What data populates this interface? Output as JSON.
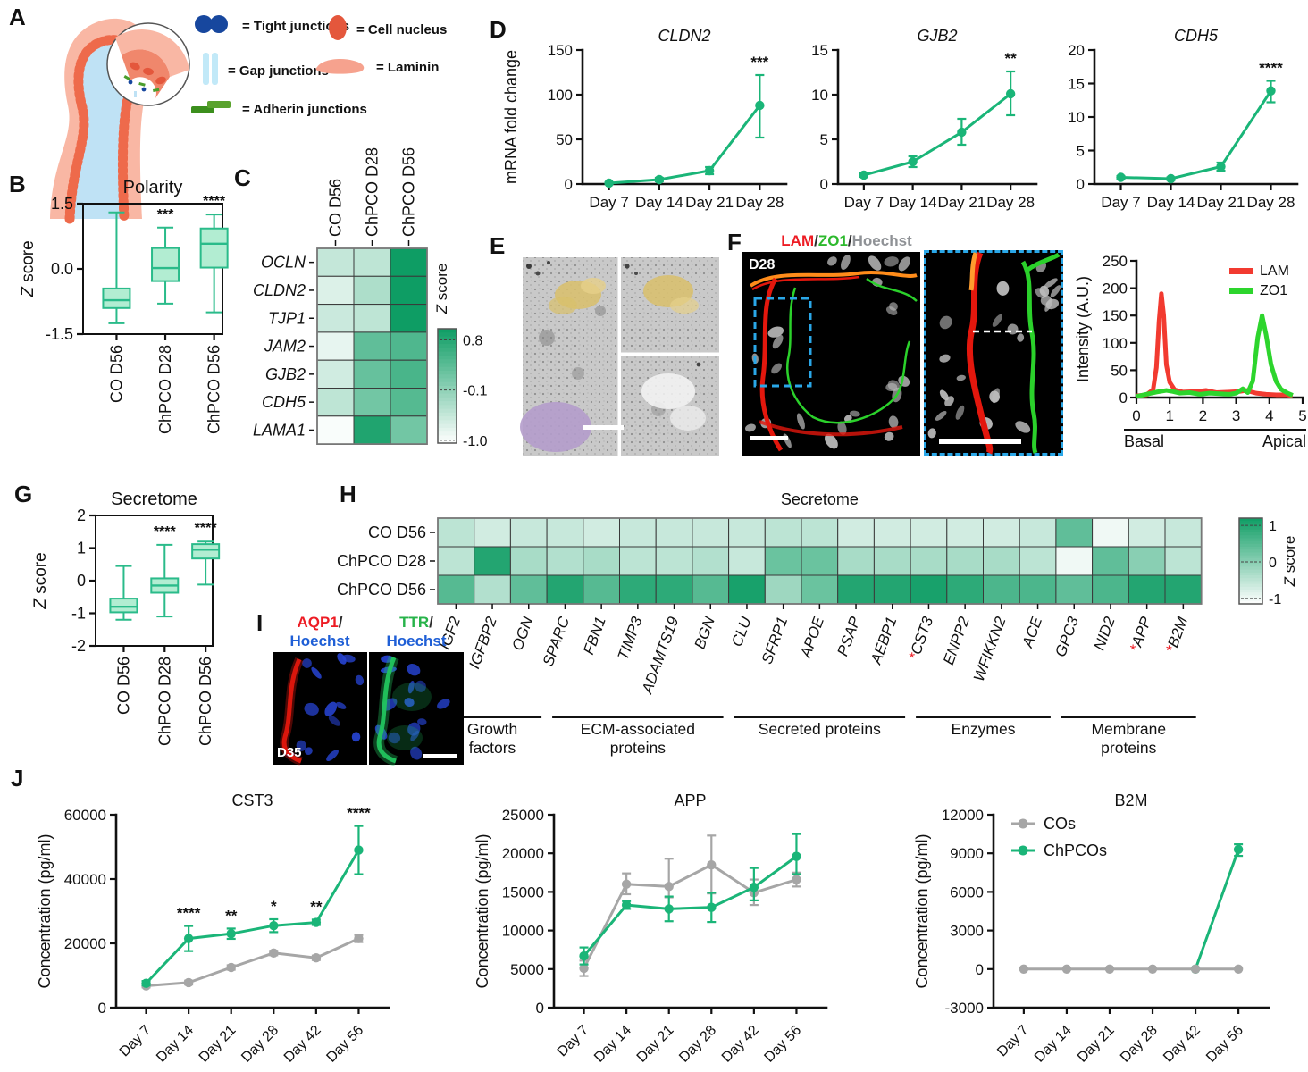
{
  "figure": {
    "panels": {
      "a": "A",
      "b": "B",
      "c": "C",
      "d": "D",
      "e": "E",
      "f": "F",
      "g": "G",
      "h": "H",
      "i": "I",
      "j": "J"
    }
  },
  "colors": {
    "accent_green": "#1ab578",
    "series_gray": "#a6a6a6",
    "box_fill": "#b2edd2",
    "box_stroke": "#2abb8a",
    "lam_red": "#f23a30",
    "zo1_green": "#2dd52d",
    "star_red": "#ed1c24",
    "hoechst_blue": "#1f5fd6"
  },
  "panel_a": {
    "legend": [
      {
        "icon": "tight-junctions-icon",
        "label": "= Tight junctions"
      },
      {
        "icon": "cell-nucleus-icon",
        "label": "= Cell nucleus"
      },
      {
        "icon": "gap-junctions-icon",
        "label": "= Gap junctions"
      },
      {
        "icon": "laminin-icon",
        "label": "= Laminin"
      },
      {
        "icon": "adherin-junctions-icon",
        "label": "= Adherin junctions"
      }
    ]
  },
  "panel_f": {
    "image_label": "D28",
    "title_parts": [
      {
        "text": "LAM",
        "color": "#ed1c24"
      },
      {
        "text": "/",
        "color": "#2b2b2b"
      },
      {
        "text": "ZO1",
        "color": "#2db92d"
      },
      {
        "text": "/",
        "color": "#2b2b2b"
      },
      {
        "text": "Hoechst",
        "color": "#8f9296"
      }
    ]
  },
  "panel_i": {
    "image_label": "D35",
    "label1_parts": [
      {
        "text": "AQP1",
        "color": "#ed1c24"
      },
      {
        "text": "/",
        "color": "#2b2b2b"
      }
    ],
    "label2_parts": [
      {
        "text": "TTR",
        "color": "#27b34a"
      },
      {
        "text": "/",
        "color": "#2b2b2b"
      }
    ],
    "hoechst": "Hoechst"
  },
  "chart_data": [
    {
      "id": "polarity_box",
      "type": "box",
      "title": "Polarity",
      "ylabel": "Z score",
      "ylim": [
        -1.5,
        1.5
      ],
      "yticks": [
        1.5,
        0,
        -1.5
      ],
      "ytick_labels": [
        "1.5",
        "0.0",
        "-1.5"
      ],
      "categories": [
        "CO D56",
        "ChPCO D28",
        "ChPCO D56"
      ],
      "stats": [
        {
          "min": -1.25,
          "q1": -0.9,
          "med": -0.72,
          "q3": -0.45,
          "max": 1.3
        },
        {
          "min": -0.8,
          "q1": -0.28,
          "med": 0.02,
          "q3": 0.48,
          "max": 0.95
        },
        {
          "min": -1.0,
          "q1": 0.03,
          "med": 0.58,
          "q3": 0.93,
          "max": 1.25
        }
      ],
      "sig": [
        "",
        "***",
        "****"
      ]
    },
    {
      "id": "junction_heatmap",
      "type": "heatmap",
      "rows_italic": true,
      "rows": [
        "OCLN",
        "CLDN2",
        "TJP1",
        "JAM2",
        "GJB2",
        "CDH5",
        "LAMA1"
      ],
      "cols": [
        "CO D56",
        "ChPCO D28",
        "ChPCO D56"
      ],
      "values": [
        [
          -0.55,
          -0.5,
          1.0
        ],
        [
          -0.75,
          -0.35,
          1.05
        ],
        [
          -0.6,
          -0.5,
          1.1
        ],
        [
          -0.85,
          0.3,
          0.45
        ],
        [
          -0.65,
          0.25,
          0.5
        ],
        [
          -0.5,
          0.15,
          0.4
        ],
        [
          -1.0,
          0.85,
          0.15
        ]
      ],
      "colorbar": {
        "label": "Z score",
        "domain": [
          -1.05,
          1.0
        ],
        "ticks": [
          "0.8",
          "-0.1",
          "-1.0"
        ],
        "tick_vals": [
          0.8,
          -0.1,
          -1.0
        ]
      }
    },
    {
      "id": "cldn2",
      "type": "line",
      "title": "CLDN2",
      "title_italic": true,
      "ylabel": "mRNA fold change",
      "ylim": [
        0,
        150
      ],
      "yticks": [
        0,
        50,
        100,
        150
      ],
      "categories": [
        "Day 7",
        "Day 14",
        "Day 21",
        "Day 28"
      ],
      "series": [
        {
          "name": "ChPCO",
          "color": "#1ab578",
          "values": [
            1,
            5,
            15,
            88
          ],
          "err": [
            [
              0.5,
              2
            ],
            [
              3,
              7
            ],
            [
              11,
              19
            ],
            [
              52,
              122
            ]
          ]
        }
      ],
      "sig": [
        {
          "series": 0,
          "point": 3,
          "text": "***"
        }
      ]
    },
    {
      "id": "gjb2",
      "type": "line",
      "title": "GJB2",
      "title_italic": true,
      "ylim": [
        0,
        15
      ],
      "yticks": [
        0,
        5,
        10,
        15
      ],
      "categories": [
        "Day 7",
        "Day 14",
        "Day 21",
        "Day 28"
      ],
      "series": [
        {
          "name": "ChPCO",
          "color": "#1ab578",
          "values": [
            1,
            2.5,
            5.8,
            10.1
          ],
          "err": [
            [
              0.8,
              1.2
            ],
            [
              1.9,
              3.1
            ],
            [
              4.4,
              7.3
            ],
            [
              7.7,
              12.6
            ]
          ]
        }
      ],
      "sig": [
        {
          "series": 0,
          "point": 3,
          "text": "**"
        }
      ]
    },
    {
      "id": "cdh5",
      "type": "line",
      "title": "CDH5",
      "title_italic": true,
      "ylim": [
        0,
        20
      ],
      "yticks": [
        0,
        5,
        10,
        15,
        20
      ],
      "categories": [
        "Day 7",
        "Day 14",
        "Day 21",
        "Day 28"
      ],
      "series": [
        {
          "name": "ChPCO",
          "color": "#1ab578",
          "values": [
            1,
            0.8,
            2.6,
            13.9
          ],
          "err": [
            [
              0.8,
              1.2
            ],
            [
              0.6,
              1.0
            ],
            [
              2.0,
              3.2
            ],
            [
              12.2,
              15.4
            ]
          ]
        }
      ],
      "sig": [
        {
          "series": 0,
          "point": 3,
          "text": "****"
        }
      ]
    },
    {
      "id": "intensity_profile",
      "type": "profile",
      "ylabel": "Intensity (A.U.)",
      "ylim": [
        0,
        250
      ],
      "yticks": [
        0,
        50,
        100,
        150,
        200,
        250
      ],
      "xlim": [
        0,
        5
      ],
      "xticks": [
        0,
        1,
        2,
        3,
        4,
        5
      ],
      "x_sublabels": [
        "Basal",
        "Apical"
      ],
      "legend": [
        "LAM",
        "ZO1"
      ],
      "series": [
        {
          "name": "LAM",
          "color": "#f23a30",
          "points": [
            [
              0,
              3
            ],
            [
              0.3,
              5
            ],
            [
              0.5,
              14
            ],
            [
              0.6,
              55
            ],
            [
              0.68,
              140
            ],
            [
              0.75,
              190
            ],
            [
              0.82,
              150
            ],
            [
              0.9,
              60
            ],
            [
              1.0,
              28
            ],
            [
              1.15,
              14
            ],
            [
              1.4,
              10
            ],
            [
              1.8,
              11
            ],
            [
              2.1,
              13
            ],
            [
              2.4,
              9
            ],
            [
              2.8,
              10
            ],
            [
              3.1,
              11
            ],
            [
              3.3,
              13
            ],
            [
              3.6,
              8
            ],
            [
              3.9,
              6
            ],
            [
              4.2,
              5
            ],
            [
              4.5,
              5
            ],
            [
              4.7,
              3
            ]
          ]
        },
        {
          "name": "ZO1",
          "color": "#2dd52d",
          "points": [
            [
              0,
              2
            ],
            [
              0.3,
              6
            ],
            [
              0.6,
              10
            ],
            [
              0.9,
              13
            ],
            [
              1.1,
              11
            ],
            [
              1.3,
              8
            ],
            [
              1.6,
              9
            ],
            [
              1.9,
              6
            ],
            [
              2.2,
              8
            ],
            [
              2.5,
              7
            ],
            [
              2.8,
              6
            ],
            [
              3.0,
              8
            ],
            [
              3.2,
              16
            ],
            [
              3.35,
              9
            ],
            [
              3.5,
              30
            ],
            [
              3.65,
              110
            ],
            [
              3.78,
              150
            ],
            [
              3.9,
              115
            ],
            [
              4.05,
              60
            ],
            [
              4.2,
              30
            ],
            [
              4.35,
              15
            ],
            [
              4.55,
              8
            ],
            [
              4.7,
              4
            ]
          ]
        }
      ]
    },
    {
      "id": "secretome_box",
      "type": "box",
      "title": "Secretome",
      "ylabel": "Z score",
      "ylim": [
        -2,
        2
      ],
      "yticks": [
        2,
        1,
        0,
        -1,
        -2
      ],
      "ytick_labels": [
        "2",
        "1",
        "0",
        "-1",
        "-2"
      ],
      "categories": [
        "CO D56",
        "ChPCO D28",
        "ChPCO D56"
      ],
      "stats": [
        {
          "min": -1.2,
          "q1": -0.97,
          "med": -0.8,
          "q3": -0.55,
          "max": 0.45
        },
        {
          "min": -1.1,
          "q1": -0.37,
          "med": -0.15,
          "q3": 0.07,
          "max": 1.1
        },
        {
          "min": -0.12,
          "q1": 0.68,
          "med": 0.95,
          "q3": 1.12,
          "max": 1.2
        }
      ],
      "sig": [
        "",
        "****",
        "****"
      ]
    },
    {
      "id": "secretome_heatmap",
      "type": "heatmap",
      "title": "Secretome",
      "cols_italic": true,
      "rows": [
        "CO D56",
        "ChPCO D28",
        "ChPCO D56"
      ],
      "cols": [
        "IGF2",
        "IGFBP2",
        "OGN",
        "SPARC",
        "FBN1",
        "TIMP3",
        "ADAMTS19",
        "BGN",
        "CLU",
        "SFRP1",
        "APOE",
        "PSAP",
        "AEBP1",
        "CST3",
        "ENPP2",
        "WFIKKN2",
        "ACE",
        "GPC3",
        "NID2",
        "APP",
        "B2M"
      ],
      "red_star_cols": [
        "CST3",
        "APP",
        "B2M"
      ],
      "values": [
        [
          -0.5,
          -0.7,
          -0.6,
          -0.6,
          -0.7,
          -0.6,
          -0.6,
          -0.6,
          -0.6,
          -0.5,
          -0.5,
          -0.7,
          -0.7,
          -0.7,
          -0.7,
          -0.7,
          -0.6,
          0.4,
          -1.0,
          -0.7,
          -0.6
        ],
        [
          -0.5,
          1.0,
          -0.3,
          -0.4,
          -0.3,
          -0.5,
          -0.5,
          -0.4,
          -0.6,
          0.3,
          0.3,
          -0.3,
          -0.3,
          -0.3,
          -0.3,
          -0.3,
          -0.5,
          -1.0,
          0.4,
          0.0,
          -0.5
        ],
        [
          0.5,
          -0.4,
          0.4,
          1.0,
          0.5,
          0.9,
          0.9,
          0.5,
          1.1,
          -0.2,
          0.3,
          1.0,
          1.0,
          1.1,
          0.9,
          0.6,
          0.6,
          0.4,
          0.6,
          1.0,
          1.0
        ]
      ],
      "groups": [
        {
          "label": [
            "Growth",
            "factors"
          ],
          "span": [
            0,
            2
          ]
        },
        {
          "label": [
            "ECM-associated",
            "proteins"
          ],
          "span": [
            3,
            7
          ]
        },
        {
          "label": [
            "Secreted proteins"
          ],
          "span": [
            8,
            12
          ]
        },
        {
          "label": [
            "Enzymes"
          ],
          "span": [
            13,
            16
          ]
        },
        {
          "label": [
            "Membrane",
            "proteins"
          ],
          "span": [
            17,
            20
          ]
        }
      ],
      "colorbar": {
        "label": "Z score",
        "domain": [
          -1.15,
          1.2
        ],
        "ticks": [
          "1",
          "0",
          "-1"
        ],
        "tick_vals": [
          1,
          0,
          -1
        ]
      }
    },
    {
      "id": "cst3",
      "type": "line",
      "title": "CST3",
      "ylabel": "Concentration (pg/ml)",
      "ylim": [
        0,
        60000
      ],
      "yticks": [
        0,
        20000,
        40000,
        60000
      ],
      "categories": [
        "Day 7",
        "Day 14",
        "Day 21",
        "Day 28",
        "Day 42",
        "Day 56"
      ],
      "series": [
        {
          "name": "COs",
          "color": "#a6a6a6",
          "values": [
            6800,
            7800,
            12500,
            17000,
            15500,
            21500
          ],
          "err": [
            [
              6300,
              7300
            ],
            [
              7200,
              8400
            ],
            [
              11800,
              13200
            ],
            [
              16300,
              17700
            ],
            [
              14800,
              16200
            ],
            [
              20400,
              22600
            ]
          ]
        },
        {
          "name": "ChPCOs",
          "color": "#1ab578",
          "values": [
            7600,
            21500,
            23000,
            25500,
            26500,
            49000
          ],
          "err": [
            [
              6900,
              8300
            ],
            [
              17600,
              25400
            ],
            [
              21400,
              24600
            ],
            [
              23500,
              27500
            ],
            [
              25700,
              27400
            ],
            [
              41500,
              56500
            ]
          ]
        }
      ],
      "sig": [
        {
          "series": 1,
          "point": 1,
          "text": "****"
        },
        {
          "series": 1,
          "point": 2,
          "text": "**"
        },
        {
          "series": 1,
          "point": 3,
          "text": "*"
        },
        {
          "series": 1,
          "point": 4,
          "text": "**"
        },
        {
          "series": 1,
          "point": 5,
          "text": "****"
        }
      ]
    },
    {
      "id": "app",
      "type": "line",
      "title": "APP",
      "ylabel": "Concentration (pg/ml)",
      "ylim": [
        0,
        25000
      ],
      "yticks": [
        0,
        5000,
        10000,
        15000,
        20000,
        25000
      ],
      "categories": [
        "Day 7",
        "Day 14",
        "Day 21",
        "Day 28",
        "Day 42",
        "Day 56"
      ],
      "series": [
        {
          "name": "COs",
          "color": "#a6a6a6",
          "values": [
            5100,
            16000,
            15700,
            18500,
            14900,
            16600
          ],
          "err": [
            [
              4100,
              6100
            ],
            [
              14700,
              17400
            ],
            [
              14300,
              19300
            ],
            [
              14800,
              22300
            ],
            [
              13300,
              16600
            ],
            [
              15700,
              17500
            ]
          ]
        },
        {
          "name": "ChPCOs",
          "color": "#1ab578",
          "values": [
            6700,
            13300,
            12800,
            13000,
            15600,
            19600
          ],
          "err": [
            [
              5600,
              7800
            ],
            [
              12800,
              13800
            ],
            [
              11200,
              14400
            ],
            [
              11100,
              14900
            ],
            [
              13900,
              18100
            ],
            [
              17300,
              22500
            ]
          ]
        }
      ],
      "sig": []
    },
    {
      "id": "b2m",
      "type": "line",
      "title": "B2M",
      "ylabel": "Concentration (pg/ml)",
      "ylim": [
        -3000,
        12000
      ],
      "yticks": [
        -3000,
        0,
        3000,
        6000,
        9000,
        12000
      ],
      "categories": [
        "Day 7",
        "Day 14",
        "Day 21",
        "Day 28",
        "Day 42",
        "Day 56"
      ],
      "legend": [
        "COs",
        "ChPCOs"
      ],
      "series": [
        {
          "name": "ChPCOs",
          "color": "#1ab578",
          "values": [
            null,
            null,
            null,
            null,
            0,
            9300
          ],
          "err": [
            null,
            null,
            null,
            null,
            null,
            [
              8800,
              9700
            ]
          ]
        },
        {
          "name": "COs",
          "color": "#a6a6a6",
          "values": [
            0,
            0,
            0,
            0,
            0,
            0
          ],
          "err": [
            null,
            null,
            null,
            null,
            null,
            null
          ]
        }
      ],
      "sig": []
    }
  ]
}
